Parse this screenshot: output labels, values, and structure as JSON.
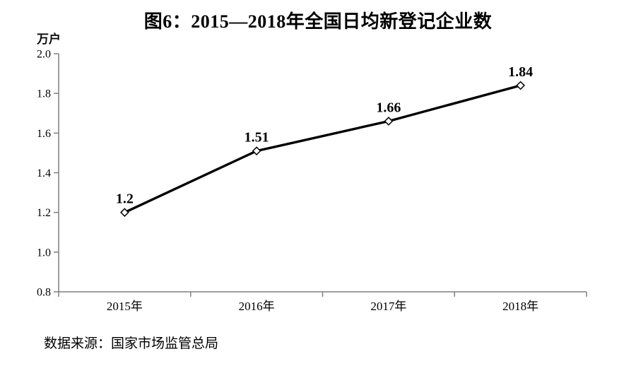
{
  "page": {
    "background": "#ffffff"
  },
  "chart_data": {
    "type": "line",
    "title": "图6：2015—2018年全国日均新登记企业数",
    "unit_label": "万户",
    "categories": [
      "2015年",
      "2016年",
      "2017年",
      "2018年"
    ],
    "values": [
      1.2,
      1.51,
      1.66,
      1.84
    ],
    "data_labels": [
      "1.2",
      "1.51",
      "1.66",
      "1.84"
    ],
    "ylim": [
      0.8,
      2.0
    ],
    "y_tick_step": 0.2,
    "y_tick_labels": [
      "2.0",
      "1.8",
      "1.6",
      "1.4",
      "1.2",
      "1.0",
      "0.8"
    ],
    "xlabel": "",
    "ylabel": "万户",
    "grid": "off",
    "legend": "none",
    "marker": "open-diamond",
    "line_color": "#000000",
    "marker_fill": "#ffffff",
    "axis_color": "#7f7f7f",
    "data_label_color": "#16161e"
  },
  "source_note": "数据来源：国家市场监管总局"
}
